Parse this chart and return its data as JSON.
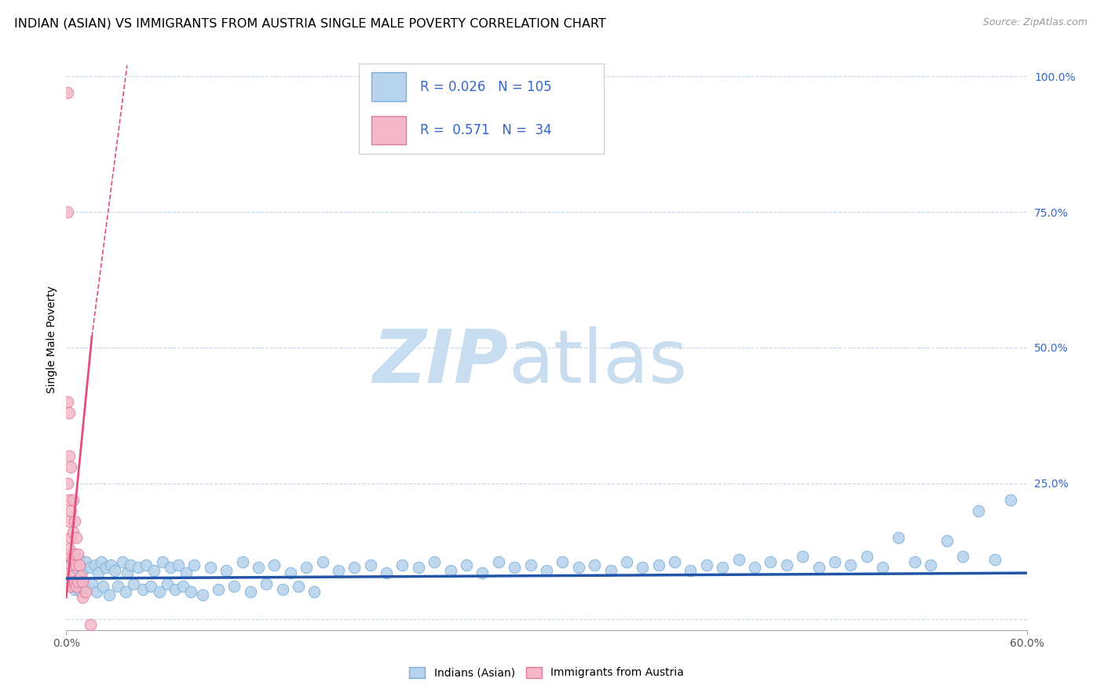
{
  "title": "INDIAN (ASIAN) VS IMMIGRANTS FROM AUSTRIA SINGLE MALE POVERTY CORRELATION CHART",
  "source_text": "Source: ZipAtlas.com",
  "ylabel": "Single Male Poverty",
  "xlim": [
    0.0,
    0.6
  ],
  "ylim": [
    -0.02,
    1.05
  ],
  "ytick_positions": [
    0.0,
    0.25,
    0.5,
    0.75,
    1.0
  ],
  "series_blue": {
    "label": "Indians (Asian)",
    "R": 0.026,
    "N": 105,
    "color": "#b8d4ec",
    "edge_color": "#7aaed8",
    "trend_color": "#2255aa",
    "x": [
      0.002,
      0.003,
      0.004,
      0.005,
      0.006,
      0.008,
      0.01,
      0.012,
      0.015,
      0.018,
      0.02,
      0.022,
      0.025,
      0.028,
      0.03,
      0.035,
      0.038,
      0.04,
      0.045,
      0.05,
      0.055,
      0.06,
      0.065,
      0.07,
      0.075,
      0.08,
      0.09,
      0.1,
      0.11,
      0.12,
      0.13,
      0.14,
      0.15,
      0.16,
      0.17,
      0.18,
      0.19,
      0.2,
      0.21,
      0.22,
      0.23,
      0.24,
      0.25,
      0.26,
      0.27,
      0.28,
      0.29,
      0.3,
      0.31,
      0.32,
      0.33,
      0.34,
      0.35,
      0.36,
      0.37,
      0.38,
      0.39,
      0.4,
      0.41,
      0.42,
      0.43,
      0.44,
      0.45,
      0.46,
      0.47,
      0.48,
      0.49,
      0.5,
      0.51,
      0.52,
      0.53,
      0.54,
      0.55,
      0.56,
      0.57,
      0.58,
      0.59,
      0.003,
      0.005,
      0.007,
      0.009,
      0.011,
      0.013,
      0.016,
      0.019,
      0.023,
      0.027,
      0.032,
      0.037,
      0.042,
      0.048,
      0.053,
      0.058,
      0.063,
      0.068,
      0.073,
      0.078,
      0.085,
      0.095,
      0.105,
      0.115,
      0.125,
      0.135,
      0.145,
      0.155
    ],
    "y": [
      0.115,
      0.1,
      0.12,
      0.095,
      0.105,
      0.11,
      0.09,
      0.105,
      0.095,
      0.1,
      0.085,
      0.105,
      0.095,
      0.1,
      0.09,
      0.105,
      0.085,
      0.1,
      0.095,
      0.1,
      0.09,
      0.105,
      0.095,
      0.1,
      0.085,
      0.1,
      0.095,
      0.09,
      0.105,
      0.095,
      0.1,
      0.085,
      0.095,
      0.105,
      0.09,
      0.095,
      0.1,
      0.085,
      0.1,
      0.095,
      0.105,
      0.09,
      0.1,
      0.085,
      0.105,
      0.095,
      0.1,
      0.09,
      0.105,
      0.095,
      0.1,
      0.09,
      0.105,
      0.095,
      0.1,
      0.105,
      0.09,
      0.1,
      0.095,
      0.11,
      0.095,
      0.105,
      0.1,
      0.115,
      0.095,
      0.105,
      0.1,
      0.115,
      0.095,
      0.15,
      0.105,
      0.1,
      0.145,
      0.115,
      0.2,
      0.11,
      0.22,
      0.06,
      0.055,
      0.065,
      0.05,
      0.06,
      0.055,
      0.065,
      0.05,
      0.06,
      0.045,
      0.06,
      0.05,
      0.065,
      0.055,
      0.06,
      0.05,
      0.065,
      0.055,
      0.06,
      0.05,
      0.045,
      0.055,
      0.06,
      0.05,
      0.065,
      0.055,
      0.06,
      0.05
    ]
  },
  "series_pink": {
    "label": "Immigrants from Austria",
    "R": 0.571,
    "N": 34,
    "color": "#f4b8c8",
    "edge_color": "#e07898",
    "trend_color": "#e0507a",
    "x": [
      0.001,
      0.001,
      0.001,
      0.001,
      0.001,
      0.002,
      0.002,
      0.002,
      0.002,
      0.002,
      0.002,
      0.003,
      0.003,
      0.003,
      0.003,
      0.003,
      0.004,
      0.004,
      0.004,
      0.004,
      0.005,
      0.005,
      0.005,
      0.006,
      0.006,
      0.006,
      0.007,
      0.007,
      0.008,
      0.009,
      0.01,
      0.01,
      0.012,
      0.015
    ],
    "y": [
      0.97,
      0.75,
      0.4,
      0.25,
      0.12,
      0.38,
      0.3,
      0.22,
      0.18,
      0.13,
      0.08,
      0.28,
      0.2,
      0.15,
      0.1,
      0.06,
      0.22,
      0.16,
      0.11,
      0.07,
      0.18,
      0.12,
      0.07,
      0.15,
      0.1,
      0.06,
      0.12,
      0.07,
      0.1,
      0.08,
      0.07,
      0.04,
      0.05,
      -0.01
    ]
  },
  "watermark_zip": "ZIP",
  "watermark_atlas": "atlas",
  "watermark_color": "#c8ddf0",
  "background_color": "#ffffff",
  "grid_color": "#c8d8e8",
  "title_fontsize": 11.5,
  "label_fontsize": 10,
  "tick_fontsize": 10,
  "legend_color": "#3366cc",
  "source_color": "#999999"
}
